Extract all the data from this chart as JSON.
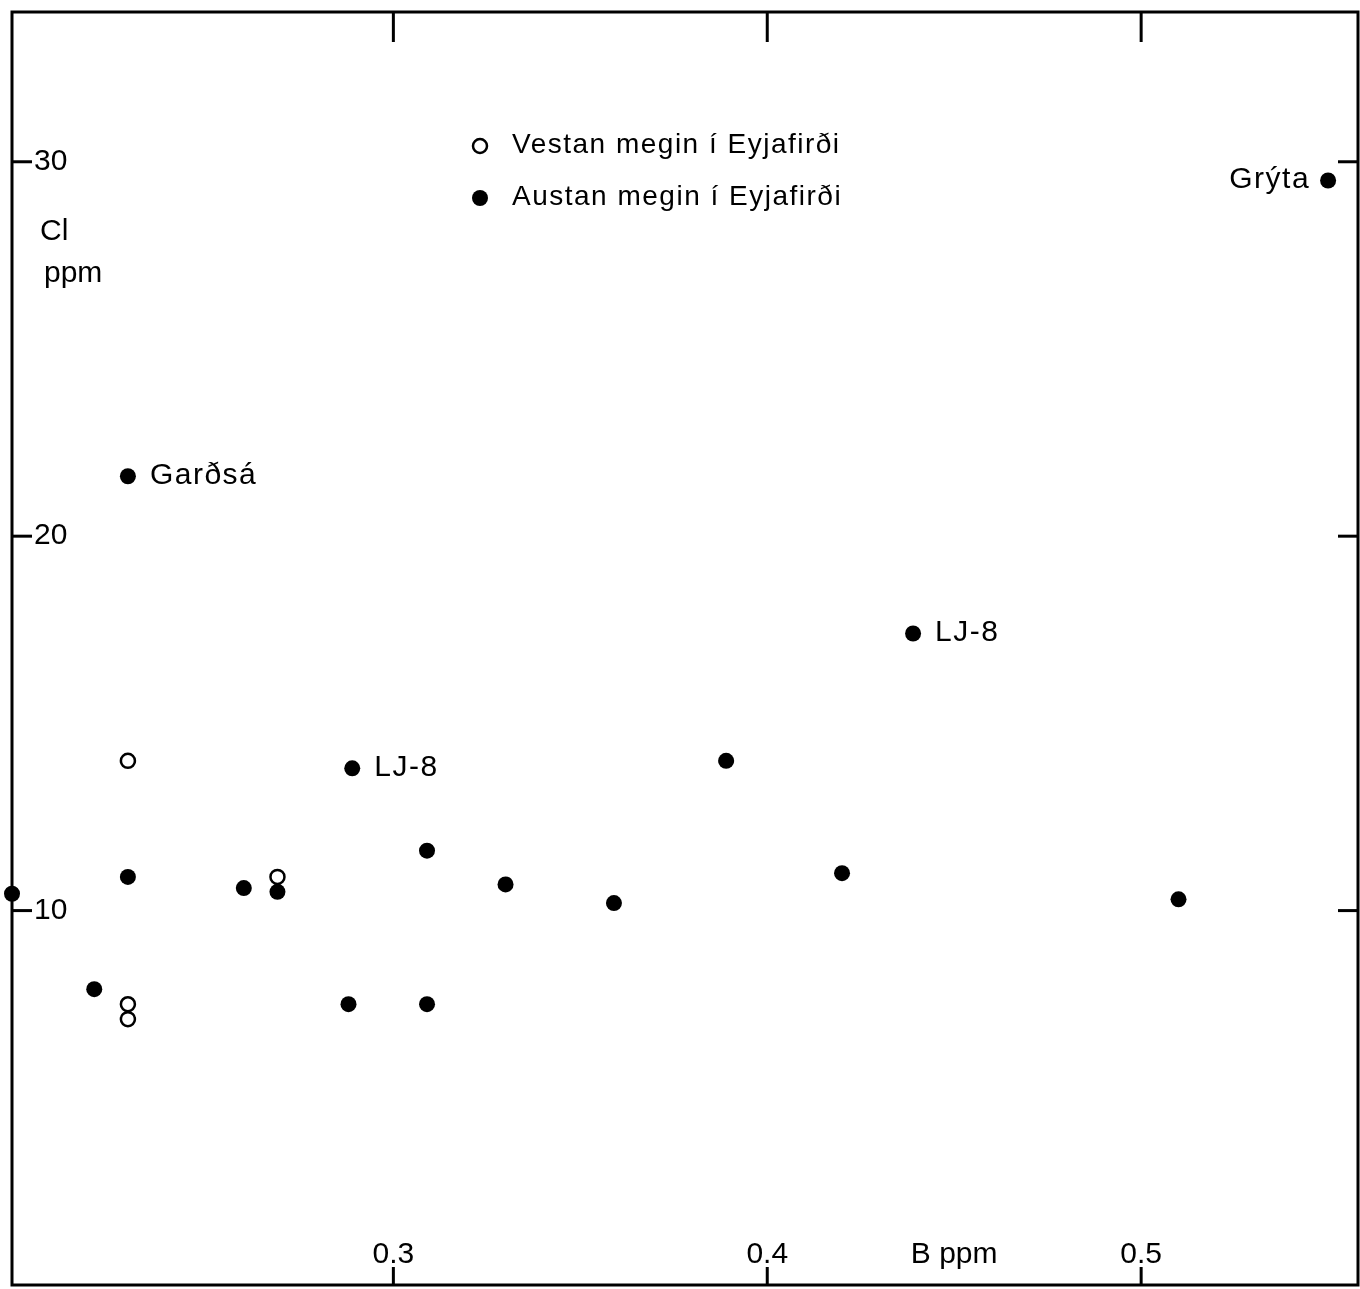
{
  "chart_data": {
    "type": "scatter",
    "xlabel": "B ppm",
    "ylabel": "Cl ppm",
    "xlim": [
      0.198,
      0.558
    ],
    "ylim": [
      0,
      34
    ],
    "xticks": [
      0.3,
      0.4,
      0.5
    ],
    "yticks": [
      10,
      20,
      30
    ],
    "grid": false,
    "legend": "top",
    "marker": "circle",
    "series": [
      {
        "name": "Vestan megin í Eyjafirði",
        "color": "#ffffff",
        "x": [
          0.229,
          0.269,
          0.229,
          0.229
        ],
        "values": [
          14.0,
          10.9,
          7.5,
          7.1
        ]
      },
      {
        "name": "Austan megin í Eyjafirði",
        "color": "#000000",
        "x": [
          0.198,
          0.22,
          0.229,
          0.229,
          0.26,
          0.269,
          0.288,
          0.289,
          0.309,
          0.309,
          0.33,
          0.359,
          0.389,
          0.42,
          0.439,
          0.51,
          0.55
        ],
        "values": [
          10.45,
          7.9,
          10.9,
          21.6,
          10.6,
          10.5,
          7.5,
          13.8,
          7.5,
          11.6,
          10.7,
          10.2,
          14.0,
          11.0,
          17.4,
          10.3,
          29.5
        ]
      }
    ],
    "annotations": [
      {
        "text": "Garðsá",
        "x": 0.229,
        "y": 21.6
      },
      {
        "text": "LJ-8",
        "x": 0.289,
        "y": 13.8
      },
      {
        "text": "LJ-8",
        "x": 0.439,
        "y": 17.4
      },
      {
        "text": "Grýta",
        "x": 0.55,
        "y": 29.5
      }
    ]
  }
}
